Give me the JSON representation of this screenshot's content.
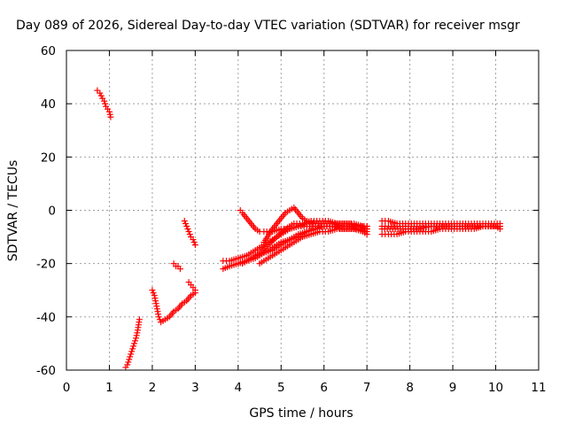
{
  "chart_data": {
    "type": "scatter",
    "title": "Day 089 of 2026, Sidereal Day-to-day VTEC variation (SDTVAR) for receiver msgr",
    "xlabel": "GPS time / hours",
    "ylabel": "SDTVAR / TECUs",
    "xlim": [
      0,
      11
    ],
    "ylim": [
      -60,
      60
    ],
    "x_ticks": [
      0,
      1,
      2,
      3,
      4,
      5,
      6,
      7,
      8,
      9,
      10,
      11
    ],
    "y_ticks": [
      -60,
      -40,
      -20,
      0,
      20,
      40,
      60
    ],
    "grid": true,
    "marker": "+",
    "color": "#ff0000",
    "series": [
      {
        "x": [
          0.72,
          0.78,
          0.84,
          0.88,
          0.92,
          0.96,
          1.0,
          1.03
        ],
        "y": [
          45,
          44,
          42,
          41,
          39,
          38,
          37,
          35
        ]
      },
      {
        "x": [
          1.38,
          1.42,
          1.46,
          1.5,
          1.54,
          1.58,
          1.62,
          1.66,
          1.7
        ],
        "y": [
          -59,
          -58,
          -56,
          -54,
          -52,
          -50,
          -48,
          -45,
          -41
        ]
      },
      {
        "x": [
          2.0,
          2.05,
          2.1,
          2.15,
          2.2,
          2.3,
          2.4,
          2.5,
          2.6,
          2.7,
          2.8,
          2.9,
          3.0
        ],
        "y": [
          -30,
          -32,
          -36,
          -40,
          -42,
          -41,
          -40,
          -38,
          -37,
          -35,
          -34,
          -32,
          -31
        ]
      },
      {
        "x": [
          2.5,
          2.55,
          2.6,
          2.65
        ],
        "y": [
          -20,
          -21,
          -21,
          -22
        ]
      },
      {
        "x": [
          2.75,
          2.8,
          2.85,
          2.9,
          2.95,
          3.0
        ],
        "y": [
          -4,
          -6,
          -8,
          -10,
          -11,
          -13
        ]
      },
      {
        "x": [
          2.85,
          2.9,
          2.95,
          3.0
        ],
        "y": [
          -27,
          -28,
          -29,
          -30
        ]
      },
      {
        "x": [
          3.65,
          3.8,
          4.0,
          4.2,
          4.4,
          4.6,
          4.8,
          5.0,
          5.2,
          5.4,
          5.6,
          5.8,
          6.0,
          6.2,
          6.4,
          6.6,
          6.8,
          7.0
        ],
        "y": [
          -22,
          -21,
          -20,
          -19,
          -17,
          -16,
          -14,
          -12,
          -11,
          -9,
          -8,
          -7,
          -6,
          -6,
          -6,
          -6,
          -6,
          -7
        ]
      },
      {
        "x": [
          3.65,
          3.8,
          4.0,
          4.2,
          4.4,
          4.6,
          4.8,
          5.0,
          5.2,
          5.4,
          5.6,
          5.8,
          6.0,
          6.2,
          6.4,
          6.6,
          6.8,
          7.0
        ],
        "y": [
          -19,
          -19,
          -18,
          -17,
          -15,
          -13,
          -11,
          -9,
          -7,
          -6,
          -5,
          -5,
          -5,
          -5,
          -5,
          -5,
          -6,
          -6
        ]
      },
      {
        "x": [
          4.0,
          4.2,
          4.4,
          4.6,
          4.8,
          5.0,
          5.2,
          5.4,
          5.6,
          5.8,
          6.0,
          6.2,
          6.4,
          6.6,
          6.8,
          7.0
        ],
        "y": [
          -20,
          -19,
          -18,
          -16,
          -15,
          -13,
          -11,
          -10,
          -8,
          -7,
          -6,
          -6,
          -6,
          -6,
          -7,
          -8
        ]
      },
      {
        "x": [
          4.1,
          4.3,
          4.5,
          4.7,
          4.9,
          5.1,
          5.3,
          5.5,
          5.7,
          5.9,
          6.1,
          6.3,
          6.5,
          6.7,
          6.9,
          7.0
        ],
        "y": [
          -20,
          -18,
          -16,
          -13,
          -10,
          -7,
          -5,
          -5,
          -4,
          -4,
          -4,
          -5,
          -5,
          -5,
          -6,
          -6
        ]
      },
      {
        "x": [
          4.5,
          4.7,
          4.9,
          5.1,
          5.3,
          5.5,
          5.7,
          5.9,
          6.1,
          6.3,
          6.5,
          6.7,
          6.9,
          7.0
        ],
        "y": [
          -20,
          -18,
          -16,
          -14,
          -12,
          -10,
          -9,
          -8,
          -8,
          -7,
          -7,
          -7,
          -8,
          -9
        ]
      },
      {
        "x": [
          4.05,
          4.1,
          4.2,
          4.3,
          4.4,
          4.5,
          4.6,
          4.8,
          5.0,
          5.2,
          5.4,
          5.6,
          5.8,
          6.0,
          6.2,
          6.4,
          6.6,
          6.8,
          7.0
        ],
        "y": [
          0,
          -1,
          -3,
          -5,
          -7,
          -8,
          -8,
          -8,
          -7,
          -7,
          -6,
          -6,
          -6,
          -6,
          -6,
          -7,
          -7,
          -7,
          -7
        ]
      },
      {
        "x": [
          4.6,
          4.8,
          5.0,
          5.1,
          5.2,
          5.3,
          5.4,
          5.5,
          5.6,
          5.8,
          6.0,
          6.2,
          6.4,
          6.6,
          6.8,
          7.0
        ],
        "y": [
          -12,
          -7,
          -3,
          -1,
          0,
          1,
          -1,
          -3,
          -4,
          -5,
          -5,
          -5,
          -6,
          -6,
          -6,
          -6
        ]
      },
      {
        "x": [
          7.35,
          7.5,
          7.7,
          7.9,
          8.1,
          8.3,
          8.5,
          8.7,
          8.9,
          9.1,
          9.3,
          9.5,
          9.7,
          9.9,
          10.1
        ],
        "y": [
          -4,
          -4,
          -5,
          -5,
          -5,
          -5,
          -5,
          -5,
          -5,
          -5,
          -5,
          -5,
          -5,
          -5,
          -5
        ]
      },
      {
        "x": [
          7.35,
          7.5,
          7.7,
          7.9,
          8.1,
          8.3,
          8.5,
          8.7,
          8.9,
          9.1,
          9.3,
          9.5,
          9.7,
          9.9,
          10.1
        ],
        "y": [
          -6,
          -6,
          -6,
          -6,
          -6,
          -6,
          -6,
          -6,
          -6,
          -6,
          -6,
          -6,
          -6,
          -6,
          -6
        ]
      },
      {
        "x": [
          7.35,
          7.5,
          7.7,
          7.9,
          8.1,
          8.3,
          8.5,
          8.7,
          8.9,
          9.1,
          9.3,
          9.5,
          9.7,
          9.9,
          10.1
        ],
        "y": [
          -9,
          -9,
          -9,
          -8,
          -8,
          -8,
          -8,
          -7,
          -7,
          -7,
          -7,
          -7,
          -6,
          -6,
          -6
        ]
      },
      {
        "x": [
          7.35,
          7.6,
          7.9,
          8.2,
          8.5,
          8.8,
          9.1,
          9.4,
          9.7,
          10.0,
          10.1
        ],
        "y": [
          -7,
          -7,
          -7,
          -7,
          -6,
          -6,
          -6,
          -6,
          -6,
          -6,
          -7
        ]
      }
    ]
  }
}
